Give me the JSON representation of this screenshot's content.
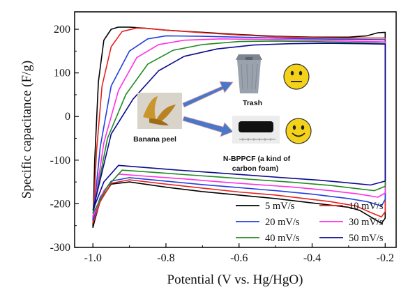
{
  "chart_data": {
    "type": "line",
    "xlabel": "Potential (V vs. Hg/HgO)",
    "ylabel": "Specific capacitance (F/g)",
    "xlim": [
      -1.05,
      -0.17
    ],
    "ylim": [
      -300,
      240
    ],
    "xticks": [
      -1.0,
      -0.8,
      -0.6,
      -0.4,
      -0.2
    ],
    "xtick_labels": [
      "-1.0",
      "-0.8",
      "-0.6",
      "-0.4",
      "-0.2"
    ],
    "yticks": [
      -300,
      -200,
      -100,
      0,
      100,
      200
    ],
    "ytick_labels": [
      "-300",
      "-200",
      "-100",
      "0",
      "100",
      "200"
    ],
    "grid": false,
    "legend_position": "bottom-right",
    "series": [
      {
        "name": "5 mV/s",
        "color": "#000000",
        "x": [
          -1.0,
          -0.995,
          -0.985,
          -0.97,
          -0.95,
          -0.93,
          -0.9,
          -0.85,
          -0.8,
          -0.7,
          -0.6,
          -0.5,
          -0.4,
          -0.3,
          -0.25,
          -0.22,
          -0.2,
          -0.2,
          -0.21,
          -0.23,
          -0.27,
          -0.3,
          -0.4,
          -0.5,
          -0.6,
          -0.7,
          -0.8,
          -0.9,
          -0.95,
          -0.98,
          -0.995,
          -1.0
        ],
        "y": [
          -255,
          -100,
          80,
          175,
          200,
          205,
          205,
          202,
          198,
          193,
          188,
          184,
          182,
          182,
          185,
          192,
          193,
          -233,
          -245,
          -235,
          -215,
          -208,
          -198,
          -188,
          -180,
          -172,
          -162,
          -150,
          -155,
          -193,
          -238,
          -255
        ]
      },
      {
        "name": "10 mV/s",
        "color": "#e8211b",
        "x": [
          -1.0,
          -0.99,
          -0.975,
          -0.95,
          -0.92,
          -0.88,
          -0.85,
          -0.8,
          -0.7,
          -0.6,
          -0.5,
          -0.4,
          -0.3,
          -0.25,
          -0.2,
          -0.2,
          -0.21,
          -0.24,
          -0.28,
          -0.35,
          -0.5,
          -0.6,
          -0.7,
          -0.8,
          -0.9,
          -0.95,
          -0.98,
          -1.0
        ],
        "y": [
          -245,
          -80,
          70,
          160,
          195,
          203,
          202,
          198,
          192,
          187,
          183,
          181,
          180,
          180,
          180,
          -218,
          -230,
          -220,
          -205,
          -195,
          -180,
          -173,
          -164,
          -155,
          -145,
          -153,
          -195,
          -245
        ]
      },
      {
        "name": "20 mV/s",
        "color": "#1f3fe0",
        "x": [
          -1.0,
          -0.98,
          -0.95,
          -0.9,
          -0.85,
          -0.8,
          -0.7,
          -0.6,
          -0.5,
          -0.4,
          -0.3,
          -0.2,
          -0.2,
          -0.21,
          -0.25,
          -0.3,
          -0.4,
          -0.5,
          -0.6,
          -0.7,
          -0.8,
          -0.9,
          -0.95,
          -0.98,
          -1.0
        ],
        "y": [
          -238,
          -70,
          70,
          150,
          178,
          185,
          184,
          182,
          180,
          178,
          177,
          176,
          -190,
          -205,
          -195,
          -188,
          -178,
          -170,
          -163,
          -156,
          -148,
          -140,
          -148,
          -185,
          -238
        ]
      },
      {
        "name": "30 mV/s",
        "color": "#ff2ee6",
        "x": [
          -1.0,
          -0.97,
          -0.93,
          -0.88,
          -0.82,
          -0.75,
          -0.65,
          -0.55,
          -0.45,
          -0.35,
          -0.25,
          -0.2,
          -0.2,
          -0.22,
          -0.27,
          -0.35,
          -0.45,
          -0.55,
          -0.65,
          -0.75,
          -0.85,
          -0.93,
          -0.97,
          -1.0
        ],
        "y": [
          -230,
          -60,
          60,
          135,
          165,
          175,
          178,
          177,
          176,
          174,
          172,
          171,
          -175,
          -185,
          -178,
          -170,
          -162,
          -156,
          -150,
          -143,
          -137,
          -132,
          -170,
          -230
        ]
      },
      {
        "name": "40 mV/s",
        "color": "#1f8a1f",
        "x": [
          -1.0,
          -0.96,
          -0.91,
          -0.85,
          -0.78,
          -0.7,
          -0.6,
          -0.5,
          -0.4,
          -0.3,
          -0.22,
          -0.2,
          -0.2,
          -0.23,
          -0.28,
          -0.35,
          -0.45,
          -0.55,
          -0.65,
          -0.75,
          -0.85,
          -0.92,
          -0.96,
          -1.0
        ],
        "y": [
          -222,
          -50,
          50,
          120,
          152,
          165,
          172,
          173,
          172,
          170,
          168,
          167,
          -160,
          -170,
          -165,
          -158,
          -151,
          -145,
          -139,
          -133,
          -127,
          -123,
          -160,
          -222
        ]
      },
      {
        "name": "50 mV/s",
        "color": "#0a0a8c",
        "x": [
          -1.0,
          -0.95,
          -0.89,
          -0.82,
          -0.75,
          -0.66,
          -0.56,
          -0.46,
          -0.36,
          -0.26,
          -0.2,
          -0.2,
          -0.24,
          -0.3,
          -0.38,
          -0.48,
          -0.58,
          -0.68,
          -0.78,
          -0.87,
          -0.93,
          -0.97,
          -1.0
        ],
        "y": [
          -215,
          -40,
          40,
          105,
          138,
          155,
          164,
          167,
          168,
          167,
          166,
          -148,
          -157,
          -152,
          -146,
          -140,
          -134,
          -128,
          -122,
          -116,
          -112,
          -150,
          -215
        ]
      }
    ]
  },
  "inset": {
    "banana_label": "Banana peel",
    "trash_label": "Trash",
    "foam_label_line1": "N-BPPCF (a kind of",
    "foam_label_line2": "carbon foam)",
    "neutral_face_color": "#f5d21a",
    "happy_face_color": "#f5d21a",
    "arrow_color": "#4472c4"
  }
}
